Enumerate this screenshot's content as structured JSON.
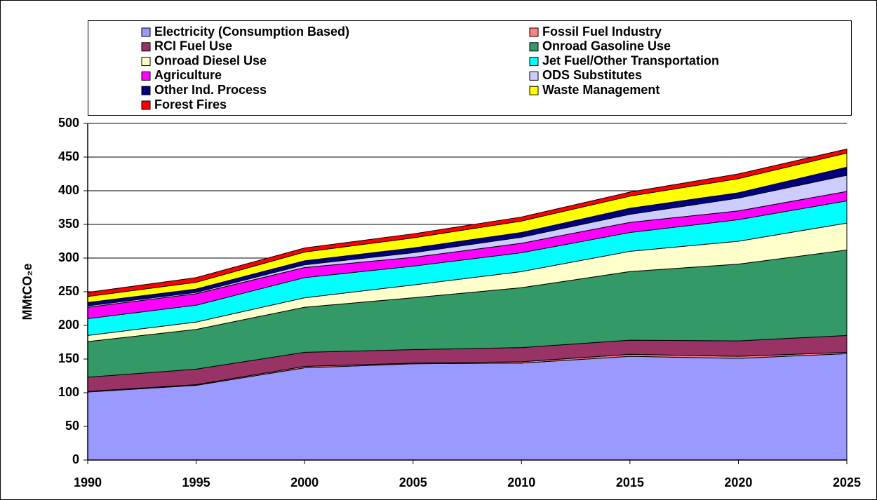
{
  "chart_data": {
    "type": "stacked_area",
    "y_label": "MMtCO₂e",
    "x": [
      1990,
      1995,
      2000,
      2005,
      2010,
      2015,
      2020,
      2025
    ],
    "xlim": [
      1990,
      2025
    ],
    "xticks": [
      1990,
      1995,
      2000,
      2005,
      2010,
      2015,
      2020,
      2025
    ],
    "ylim": [
      0,
      500
    ],
    "yticks": [
      0,
      50,
      100,
      150,
      200,
      250,
      300,
      350,
      400,
      450,
      500
    ],
    "grid": true,
    "series": [
      {
        "name": "Electricity (Consumption Based)",
        "color": "#9999ff",
        "values": [
          101,
          111,
          137,
          143,
          144,
          154,
          151,
          158
        ]
      },
      {
        "name": "Fossil Fuel Industry",
        "color": "#ff8080",
        "values": [
          1,
          1,
          2,
          1,
          2,
          3,
          3,
          2
        ]
      },
      {
        "name": "RCI Fuel Use",
        "color": "#993366",
        "values": [
          21,
          23,
          21,
          20,
          21,
          21,
          23,
          25
        ]
      },
      {
        "name": "Onroad Gasoline Use",
        "color": "#339966",
        "values": [
          53,
          59,
          67,
          77,
          89,
          102,
          114,
          127
        ]
      },
      {
        "name": "Onroad Diesel Use",
        "color": "#ffffcc",
        "values": [
          9,
          11,
          14,
          19,
          24,
          30,
          34,
          40
        ]
      },
      {
        "name": "Jet Fuel/Other Transportation",
        "color": "#00ffff",
        "values": [
          25,
          25,
          30,
          28,
          28,
          28,
          32,
          33
        ]
      },
      {
        "name": "Agriculture",
        "color": "#ff00ff",
        "values": [
          17,
          17,
          15,
          13,
          14,
          15,
          13,
          14
        ]
      },
      {
        "name": "ODS Substitutes",
        "color": "#ccccff",
        "values": [
          2,
          2,
          4,
          7,
          9,
          12,
          19,
          24
        ]
      },
      {
        "name": "Other Ind. Process",
        "color": "#000080",
        "values": [
          5,
          5,
          6,
          7,
          7,
          9,
          8,
          12
        ]
      },
      {
        "name": "Waste Management",
        "color": "#ffff00",
        "values": [
          9,
          10,
          13,
          15,
          17,
          18,
          21,
          21
        ]
      },
      {
        "name": "Forest Fires",
        "color": "#ff0000",
        "values": [
          6,
          7,
          6,
          6,
          6,
          6,
          7,
          6
        ]
      }
    ]
  }
}
